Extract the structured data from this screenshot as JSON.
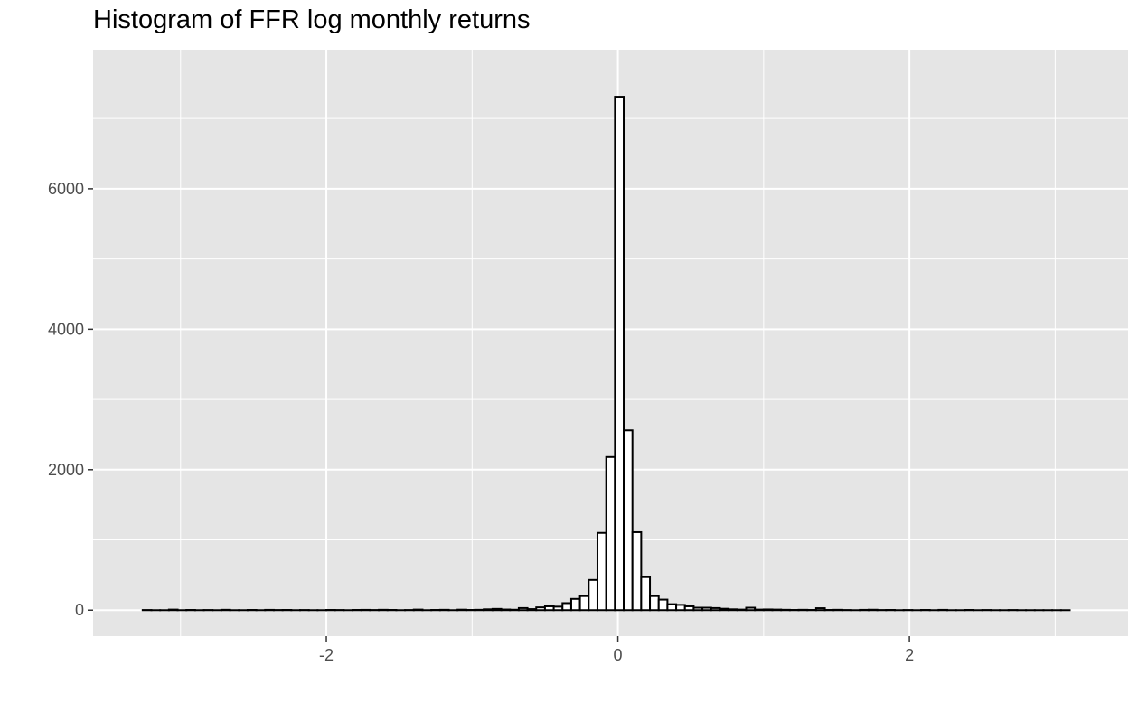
{
  "chart_data": {
    "type": "bar",
    "title": "Histogram of FFR log monthly returns",
    "xlabel": "",
    "ylabel": "",
    "xlim": [
      -3.6,
      3.5
    ],
    "ylim": [
      -370,
      7980
    ],
    "x_ticks": [
      -2,
      0,
      2
    ],
    "x_tick_labels": [
      "-2",
      "0",
      "2"
    ],
    "y_ticks": [
      0,
      2000,
      4000,
      6000
    ],
    "y_tick_labels": [
      "0",
      "2000",
      "4000",
      "6000"
    ],
    "grid": true,
    "bin_width": 0.06,
    "bins": [
      {
        "x": -3.26,
        "count": 2
      },
      {
        "x": -3.2,
        "count": 0
      },
      {
        "x": -3.14,
        "count": 0
      },
      {
        "x": -3.08,
        "count": 8
      },
      {
        "x": -3.02,
        "count": 0
      },
      {
        "x": -2.96,
        "count": 3
      },
      {
        "x": -2.9,
        "count": 0
      },
      {
        "x": -2.84,
        "count": 2
      },
      {
        "x": -2.78,
        "count": 0
      },
      {
        "x": -2.72,
        "count": 5
      },
      {
        "x": -2.66,
        "count": 0
      },
      {
        "x": -2.6,
        "count": 0
      },
      {
        "x": -2.54,
        "count": 3
      },
      {
        "x": -2.48,
        "count": 0
      },
      {
        "x": -2.42,
        "count": 4
      },
      {
        "x": -2.36,
        "count": 2
      },
      {
        "x": -2.3,
        "count": 3
      },
      {
        "x": -2.24,
        "count": 0
      },
      {
        "x": -2.18,
        "count": 2
      },
      {
        "x": -2.12,
        "count": 0
      },
      {
        "x": -2.06,
        "count": 0
      },
      {
        "x": -2.0,
        "count": 3
      },
      {
        "x": -1.94,
        "count": 2
      },
      {
        "x": -1.88,
        "count": 0
      },
      {
        "x": -1.82,
        "count": 3
      },
      {
        "x": -1.76,
        "count": 4
      },
      {
        "x": -1.7,
        "count": 2
      },
      {
        "x": -1.64,
        "count": 5
      },
      {
        "x": -1.58,
        "count": 3
      },
      {
        "x": -1.52,
        "count": 0
      },
      {
        "x": -1.46,
        "count": 2
      },
      {
        "x": -1.4,
        "count": 8
      },
      {
        "x": -1.34,
        "count": 0
      },
      {
        "x": -1.28,
        "count": 3
      },
      {
        "x": -1.22,
        "count": 5
      },
      {
        "x": -1.16,
        "count": 0
      },
      {
        "x": -1.1,
        "count": 7
      },
      {
        "x": -1.04,
        "count": 3
      },
      {
        "x": -0.98,
        "count": 5
      },
      {
        "x": -0.92,
        "count": 12
      },
      {
        "x": -0.86,
        "count": 18
      },
      {
        "x": -0.8,
        "count": 9
      },
      {
        "x": -0.74,
        "count": 6
      },
      {
        "x": -0.68,
        "count": 30
      },
      {
        "x": -0.62,
        "count": 15
      },
      {
        "x": -0.56,
        "count": 40
      },
      {
        "x": -0.5,
        "count": 55
      },
      {
        "x": -0.44,
        "count": 50
      },
      {
        "x": -0.38,
        "count": 100
      },
      {
        "x": -0.32,
        "count": 160
      },
      {
        "x": -0.26,
        "count": 200
      },
      {
        "x": -0.2,
        "count": 430
      },
      {
        "x": -0.14,
        "count": 1100
      },
      {
        "x": -0.08,
        "count": 2180
      },
      {
        "x": -0.02,
        "count": 7310
      },
      {
        "x": 0.04,
        "count": 2560
      },
      {
        "x": 0.1,
        "count": 1110
      },
      {
        "x": 0.16,
        "count": 470
      },
      {
        "x": 0.22,
        "count": 200
      },
      {
        "x": 0.28,
        "count": 150
      },
      {
        "x": 0.34,
        "count": 85
      },
      {
        "x": 0.4,
        "count": 75
      },
      {
        "x": 0.46,
        "count": 55
      },
      {
        "x": 0.52,
        "count": 35
      },
      {
        "x": 0.58,
        "count": 35
      },
      {
        "x": 0.64,
        "count": 30
      },
      {
        "x": 0.7,
        "count": 20
      },
      {
        "x": 0.76,
        "count": 12
      },
      {
        "x": 0.82,
        "count": 8
      },
      {
        "x": 0.88,
        "count": 35
      },
      {
        "x": 0.94,
        "count": 8
      },
      {
        "x": 1.0,
        "count": 10
      },
      {
        "x": 1.06,
        "count": 8
      },
      {
        "x": 1.12,
        "count": 5
      },
      {
        "x": 1.18,
        "count": 3
      },
      {
        "x": 1.24,
        "count": 5
      },
      {
        "x": 1.3,
        "count": 3
      },
      {
        "x": 1.36,
        "count": 28
      },
      {
        "x": 1.42,
        "count": 3
      },
      {
        "x": 1.48,
        "count": 5
      },
      {
        "x": 1.54,
        "count": 2
      },
      {
        "x": 1.6,
        "count": 0
      },
      {
        "x": 1.66,
        "count": 4
      },
      {
        "x": 1.72,
        "count": 6
      },
      {
        "x": 1.78,
        "count": 2
      },
      {
        "x": 1.84,
        "count": 3
      },
      {
        "x": 1.9,
        "count": 0
      },
      {
        "x": 1.96,
        "count": 2
      },
      {
        "x": 2.02,
        "count": 0
      },
      {
        "x": 2.08,
        "count": 3
      },
      {
        "x": 2.14,
        "count": 0
      },
      {
        "x": 2.2,
        "count": 4
      },
      {
        "x": 2.26,
        "count": 0
      },
      {
        "x": 2.32,
        "count": 0
      },
      {
        "x": 2.38,
        "count": 3
      },
      {
        "x": 2.44,
        "count": 0
      },
      {
        "x": 2.5,
        "count": 2
      },
      {
        "x": 2.56,
        "count": 0
      },
      {
        "x": 2.62,
        "count": 0
      },
      {
        "x": 2.68,
        "count": 2
      },
      {
        "x": 2.74,
        "count": 0
      },
      {
        "x": 2.8,
        "count": 0
      },
      {
        "x": 2.86,
        "count": 0
      },
      {
        "x": 2.92,
        "count": 0
      },
      {
        "x": 2.98,
        "count": 0
      },
      {
        "x": 3.04,
        "count": 0
      }
    ]
  },
  "colors": {
    "panel_background": "#e5e5e5",
    "grid_line": "#ffffff",
    "bar_fill": "#ffffff",
    "bar_outline": "#000000",
    "tick_label": "#4d4d4d"
  }
}
